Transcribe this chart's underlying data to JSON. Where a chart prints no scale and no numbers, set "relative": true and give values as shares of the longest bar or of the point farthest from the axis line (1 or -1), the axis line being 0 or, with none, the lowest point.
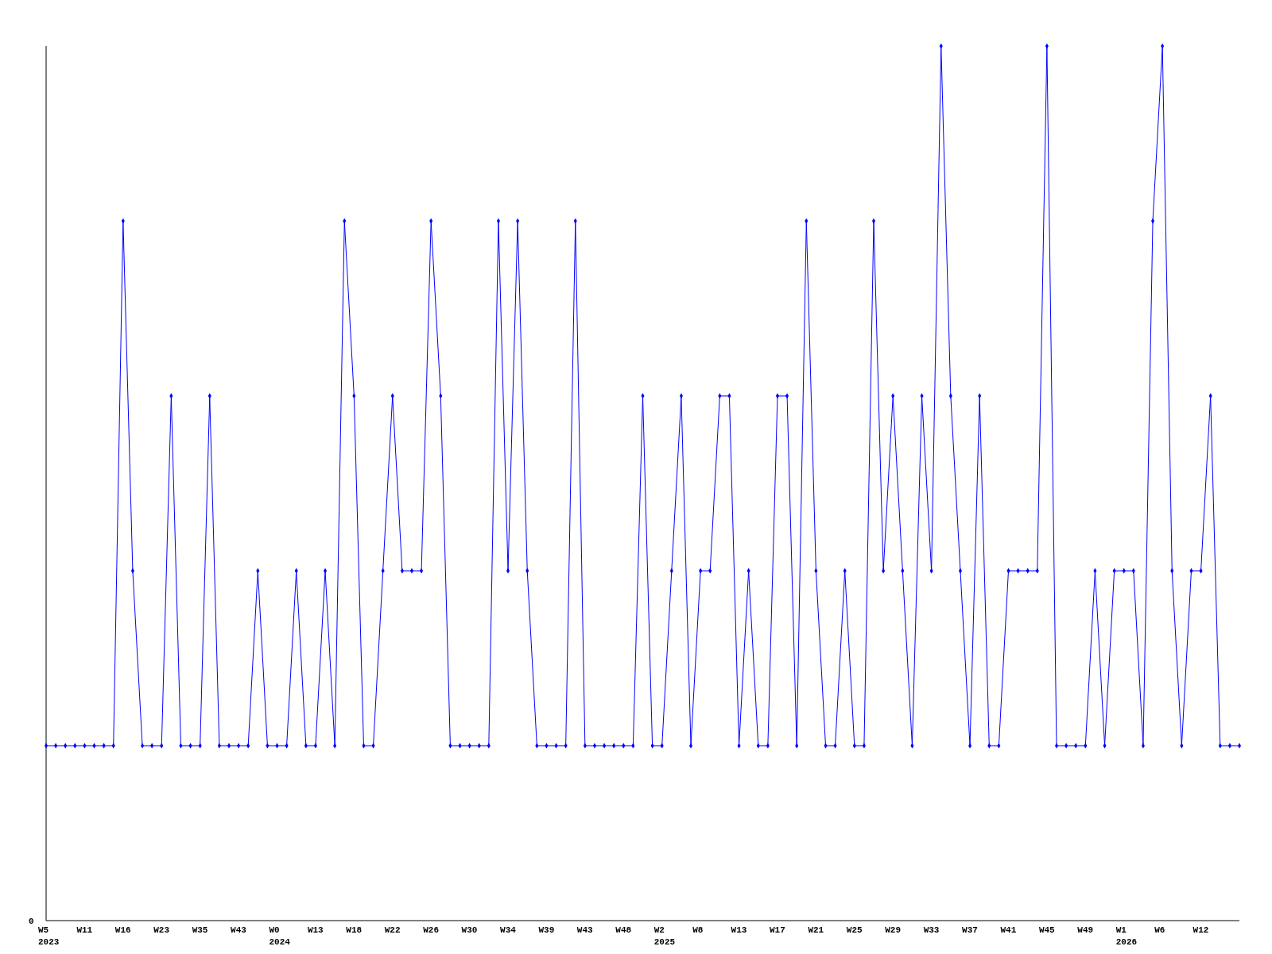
{
  "chart_data": {
    "type": "line",
    "relative": true,
    "marker": "diamond",
    "line_style": "solid",
    "annotations": [
      "0"
    ],
    "categories": [
      "W5\n2023",
      null,
      null,
      null,
      "W11",
      null,
      null,
      null,
      "W16",
      null,
      null,
      null,
      "W23",
      null,
      null,
      null,
      "W35",
      null,
      null,
      null,
      "W43",
      null,
      null,
      null,
      "W0\n2024",
      null,
      null,
      null,
      "W13",
      null,
      null,
      null,
      "W18",
      null,
      null,
      null,
      "W22",
      null,
      null,
      null,
      "W26",
      null,
      null,
      null,
      "W30",
      null,
      null,
      null,
      "W34",
      null,
      null,
      null,
      "W39",
      null,
      null,
      null,
      "W43",
      null,
      null,
      null,
      "W48",
      null,
      null,
      null,
      "W2\n2025",
      null,
      null,
      null,
      "W8",
      null,
      null,
      null,
      "W13",
      null,
      null,
      null,
      "W17",
      null,
      null,
      null,
      "W21",
      null,
      null,
      null,
      "W25",
      null,
      null,
      null,
      "W29",
      null,
      null,
      null,
      "W33",
      null,
      null,
      null,
      "W37",
      null,
      null,
      null,
      "W41",
      null,
      null,
      null,
      "W45",
      null,
      null,
      null,
      "W49",
      null,
      null,
      null,
      "W1\n2026",
      null,
      null,
      null,
      "W6",
      null,
      null,
      null,
      "W12",
      null,
      null,
      null,
      null
    ],
    "series": [
      {
        "color": "#0000ff",
        "values": [
          0.2,
          0.2,
          0.2,
          0.2,
          0.2,
          0.2,
          0.2,
          0.2,
          0.8,
          0.4,
          0.2,
          0.2,
          0.2,
          0.6,
          0.2,
          0.2,
          0.2,
          0.6,
          0.2,
          0.2,
          0.2,
          0.2,
          0.4,
          0.2,
          0.2,
          0.2,
          0.4,
          0.2,
          0.2,
          0.4,
          0.2,
          0.8,
          0.6,
          0.2,
          0.2,
          0.4,
          0.6,
          0.4,
          0.4,
          0.4,
          0.8,
          0.6,
          0.2,
          0.2,
          0.2,
          0.2,
          0.2,
          0.8,
          0.4,
          0.8,
          0.4,
          0.2,
          0.2,
          0.2,
          0.2,
          0.8,
          0.2,
          0.2,
          0.2,
          0.2,
          0.2,
          0.2,
          0.6,
          0.2,
          0.2,
          0.4,
          0.6,
          0.2,
          0.4,
          0.4,
          0.6,
          0.6,
          0.2,
          0.4,
          0.2,
          0.2,
          0.6,
          0.6,
          0.2,
          0.8,
          0.4,
          0.2,
          0.2,
          0.4,
          0.2,
          0.2,
          0.8,
          0.4,
          0.6,
          0.4,
          0.2,
          0.6,
          0.4,
          1,
          0.6,
          0.4,
          0.2,
          0.6,
          0.2,
          0.2,
          0.4,
          0.4,
          0.4,
          0.4,
          1,
          0.2,
          0.2,
          0.2,
          0.2,
          0.4,
          0.2,
          0.4,
          0.4,
          0.4,
          0.2,
          0.8,
          1,
          0.4,
          0.2,
          0.4,
          0.4,
          0.6,
          0.2,
          0.2,
          0.2
        ]
      }
    ]
  }
}
